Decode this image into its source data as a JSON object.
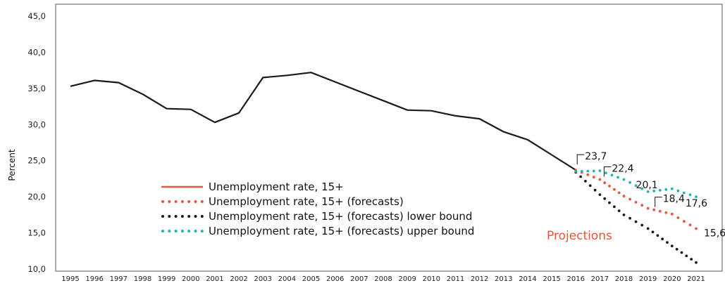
{
  "chart_data": {
    "type": "line",
    "ylabel": "Percent",
    "ylim": [
      10,
      45
    ],
    "yticks": [
      "10,0",
      "15,0",
      "20,0",
      "25,0",
      "30,0",
      "35,0",
      "40,0",
      "45,0"
    ],
    "ytick_values": [
      10,
      15,
      20,
      25,
      30,
      35,
      40,
      45
    ],
    "x": [
      "1995",
      "1996",
      "1997",
      "1998",
      "1999",
      "2000",
      "2001",
      "2002",
      "2003",
      "2004",
      "2005",
      "2006",
      "2007",
      "2008",
      "2009",
      "2010",
      "2011",
      "2012",
      "2013",
      "2014",
      "2015",
      "2016",
      "2017",
      "2018",
      "2019",
      "2020",
      "2021"
    ],
    "grid": false,
    "legend_position": "center-left",
    "series": [
      {
        "name": "Unemployment rate, 15+",
        "color": "#e8553a",
        "plot_color": "#1a1a1a",
        "style": "solid",
        "x": [
          "1995",
          "1996",
          "1997",
          "1998",
          "1999",
          "2000",
          "2001",
          "2002",
          "2003",
          "2004",
          "2005",
          "2006",
          "2007",
          "2008",
          "2009",
          "2010",
          "2011",
          "2012",
          "2013",
          "2014",
          "2015",
          "2016"
        ],
        "values": [
          35.3,
          36.1,
          35.8,
          34.2,
          32.2,
          32.1,
          30.3,
          31.6,
          36.5,
          36.8,
          37.2,
          35.9,
          34.6,
          33.3,
          32.0,
          31.9,
          31.2,
          30.8,
          29.0,
          27.9,
          25.8,
          23.7
        ]
      },
      {
        "name": "Unemployment rate, 15+ (forecasts)",
        "color": "#e8553a",
        "style": "dotted",
        "x": [
          "2016",
          "2017",
          "2018",
          "2019",
          "2020",
          "2021"
        ],
        "values": [
          23.7,
          22.4,
          20.1,
          18.4,
          17.6,
          15.6
        ]
      },
      {
        "name": "Unemployment rate, 15+ (forecasts) lower bound",
        "color": "#1a1a1a",
        "style": "dotted",
        "x": [
          "2016",
          "2017",
          "2018",
          "2019",
          "2020",
          "2021"
        ],
        "values": [
          23.4,
          20.3,
          17.5,
          15.6,
          13.2,
          10.9
        ]
      },
      {
        "name": "Unemployment rate, 15+ (forecasts) upper bound",
        "color": "#1fb3b3",
        "style": "dotted",
        "x": [
          "2016",
          "2017",
          "2018",
          "2019",
          "2020",
          "2021"
        ],
        "values": [
          23.5,
          23.6,
          22.4,
          20.7,
          21.1,
          20.0
        ]
      }
    ],
    "annotations": [
      {
        "text": "23,7",
        "x": "2016",
        "value": 23.7
      },
      {
        "text": "22,4",
        "x": "2017",
        "value": 22.4
      },
      {
        "text": "20,1",
        "x": "2018",
        "value": 20.1
      },
      {
        "text": "18,4",
        "x": "2019",
        "value": 18.4
      },
      {
        "text": "17,6",
        "x": "2020",
        "value": 17.6
      },
      {
        "text": "15,6",
        "x": "2021",
        "value": 15.6
      }
    ],
    "callout": {
      "text": "Projections",
      "color": "#e8553a"
    }
  }
}
